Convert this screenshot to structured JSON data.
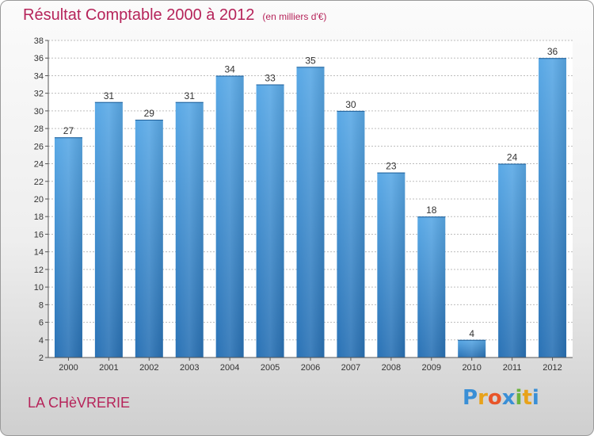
{
  "title": "Résultat Comptable 2000 à 2012",
  "subtitle": "(en milliers d'€)",
  "commune": "LA CHèVRERIE",
  "logo": {
    "letters": [
      "P",
      "r",
      "o",
      "x",
      "i",
      "t",
      "i"
    ],
    "colors": [
      "#3a8fd6",
      "#e8a21a",
      "#e8552a",
      "#3a8fd6",
      "#6cb33e",
      "#e8a21a",
      "#3a8fd6"
    ]
  },
  "colors": {
    "title": "#b6245a",
    "bar_top": "#5aa9e6",
    "bar_bottom": "#2a72b5",
    "grid": "#bdbdbd",
    "plot_bg": "#ffffff"
  },
  "chart_data": {
    "type": "bar",
    "categories": [
      "2000",
      "2001",
      "2002",
      "2003",
      "2004",
      "2005",
      "2006",
      "2007",
      "2008",
      "2009",
      "2010",
      "2011",
      "2012"
    ],
    "values": [
      27,
      31,
      29,
      31,
      34,
      33,
      35,
      30,
      23,
      18,
      4,
      24,
      36
    ],
    "ylim": [
      2,
      38
    ],
    "yticks": [
      2,
      4,
      6,
      8,
      10,
      12,
      14,
      16,
      18,
      20,
      22,
      24,
      26,
      28,
      30,
      32,
      34,
      36,
      38
    ],
    "grid": true
  }
}
